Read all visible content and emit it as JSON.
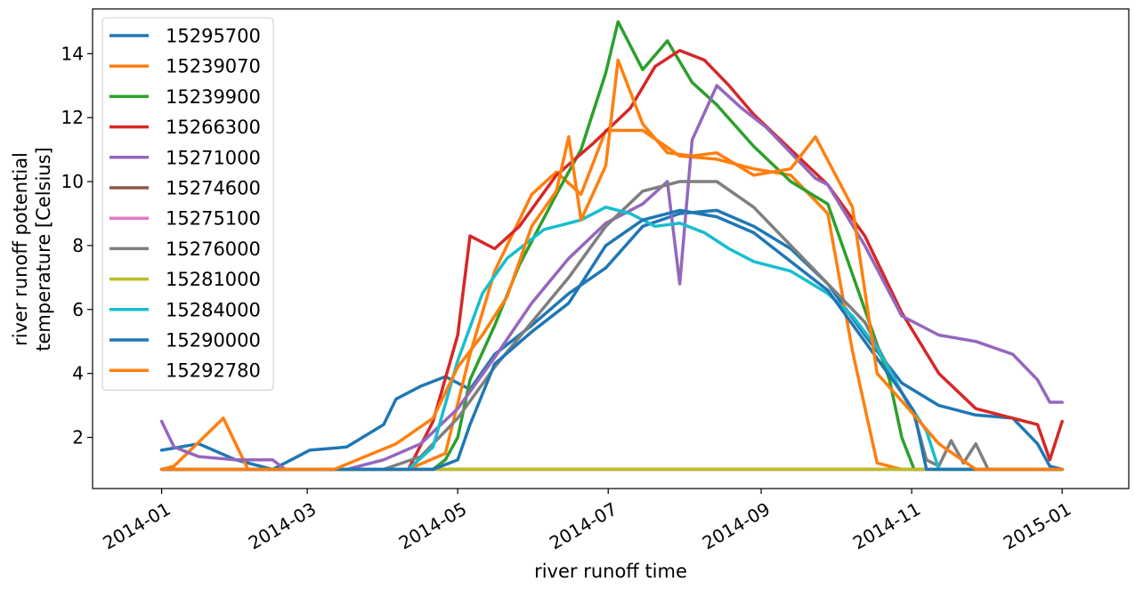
{
  "chart_data": {
    "type": "line",
    "title": "",
    "xlabel": "river runoff time",
    "ylabel_lines": [
      "river runoff potential",
      "temperature [Celsius]"
    ],
    "x_unit": "day-of-2014",
    "xlim": [
      -28,
      392
    ],
    "ylim": [
      0.4,
      15.4
    ],
    "x_ticks": [
      {
        "value": 0,
        "label": "2014-01"
      },
      {
        "value": 59,
        "label": "2014-03"
      },
      {
        "value": 120,
        "label": "2014-05"
      },
      {
        "value": 181,
        "label": "2014-07"
      },
      {
        "value": 243,
        "label": "2014-09"
      },
      {
        "value": 304,
        "label": "2014-11"
      },
      {
        "value": 365,
        "label": "2015-01"
      }
    ],
    "y_ticks": [
      2,
      4,
      6,
      8,
      10,
      12,
      14
    ],
    "legend_position": "upper-left",
    "series": [
      {
        "name": "15295700",
        "color": "#1f77b4",
        "x": [
          0,
          15,
          30,
          45,
          50,
          60,
          75,
          90,
          95,
          105,
          115,
          125,
          135,
          150,
          165,
          180,
          195,
          210,
          225,
          240,
          255,
          270,
          285,
          300,
          315,
          330,
          345,
          355,
          360,
          365
        ],
        "values": [
          1.6,
          1.8,
          1.3,
          1.0,
          1.2,
          1.6,
          1.7,
          2.4,
          3.2,
          3.6,
          3.9,
          3.5,
          4.6,
          5.5,
          6.5,
          7.3,
          8.6,
          9.0,
          9.1,
          8.6,
          7.9,
          6.8,
          5.2,
          3.7,
          3.0,
          2.7,
          2.6,
          1.8,
          1.1,
          1.0
        ]
      },
      {
        "name": "15239070",
        "color": "#ff7f0e",
        "x": [
          0,
          5,
          25,
          35,
          60,
          100,
          115,
          125,
          135,
          150,
          160,
          170,
          180,
          195,
          210,
          225,
          240,
          255,
          270,
          280,
          290,
          300,
          320,
          365
        ],
        "values": [
          1.0,
          1.1,
          2.6,
          1.0,
          1.0,
          1.0,
          1.5,
          4.6,
          7.2,
          9.6,
          10.3,
          9.6,
          11.6,
          11.6,
          10.8,
          10.7,
          10.4,
          10.2,
          9.0,
          4.7,
          1.2,
          1.0,
          1.0,
          1.0
        ]
      },
      {
        "name": "15239900",
        "color": "#2ca02c",
        "x": [
          0,
          110,
          115,
          120,
          125,
          135,
          145,
          160,
          170,
          180,
          185,
          195,
          205,
          215,
          225,
          240,
          255,
          270,
          285,
          295,
          300,
          305,
          365
        ],
        "values": [
          1.0,
          1.0,
          1.3,
          2.0,
          3.8,
          5.5,
          7.4,
          9.6,
          11.0,
          13.4,
          15.0,
          13.5,
          14.4,
          13.1,
          12.4,
          11.1,
          10.0,
          9.3,
          6.0,
          3.8,
          2.0,
          1.0,
          1.0
        ]
      },
      {
        "name": "15266300",
        "color": "#d62728",
        "x": [
          0,
          100,
          110,
          120,
          125,
          135,
          145,
          160,
          175,
          190,
          200,
          210,
          220,
          230,
          240,
          255,
          270,
          285,
          300,
          315,
          330,
          345,
          355,
          360,
          365
        ],
        "values": [
          1.0,
          1.0,
          2.5,
          5.2,
          8.3,
          7.9,
          8.6,
          10.2,
          11.2,
          12.3,
          13.6,
          14.1,
          13.8,
          13.0,
          12.1,
          11.0,
          9.9,
          8.3,
          5.9,
          4.0,
          2.9,
          2.6,
          2.4,
          1.3,
          2.5
        ]
      },
      {
        "name": "15271000",
        "color": "#9467bd",
        "x": [
          0,
          5,
          15,
          30,
          45,
          50,
          60,
          75,
          90,
          105,
          120,
          135,
          150,
          165,
          180,
          195,
          205,
          210,
          215,
          225,
          235,
          245,
          255,
          265,
          270,
          285,
          300,
          315,
          330,
          345,
          355,
          360,
          365
        ],
        "values": [
          2.5,
          1.7,
          1.4,
          1.3,
          1.3,
          1.0,
          1.0,
          1.0,
          1.3,
          1.8,
          2.9,
          4.5,
          6.2,
          7.6,
          8.7,
          9.3,
          10.0,
          6.8,
          11.3,
          13.0,
          12.3,
          11.7,
          10.9,
          10.1,
          9.9,
          8.0,
          5.8,
          5.2,
          5.0,
          4.6,
          3.8,
          3.1,
          3.1
        ]
      },
      {
        "name": "15274600",
        "color": "#8c564b",
        "x": [
          0,
          120,
          180,
          240,
          300,
          365
        ],
        "values": [
          1.0,
          1.0,
          1.0,
          1.0,
          1.0,
          1.0
        ]
      },
      {
        "name": "15275100",
        "color": "#e377c2",
        "x": [
          0,
          120,
          180,
          240,
          300,
          365
        ],
        "values": [
          1.0,
          1.0,
          1.0,
          1.0,
          1.0,
          1.0
        ]
      },
      {
        "name": "15276000",
        "color": "#7f7f7f",
        "x": [
          0,
          90,
          105,
          120,
          135,
          150,
          165,
          180,
          195,
          210,
          225,
          240,
          255,
          270,
          285,
          300,
          305,
          310,
          315,
          320,
          325,
          330,
          335,
          365
        ],
        "values": [
          1.0,
          1.0,
          1.4,
          2.6,
          4.2,
          5.6,
          7.0,
          8.6,
          9.7,
          10.0,
          10.0,
          9.2,
          8.0,
          6.8,
          5.6,
          3.4,
          2.7,
          1.3,
          1.1,
          1.9,
          1.2,
          1.8,
          1.0,
          1.0
        ]
      },
      {
        "name": "15281000",
        "color": "#bcbd22",
        "x": [
          0,
          120,
          180,
          240,
          300,
          365
        ],
        "values": [
          1.0,
          1.0,
          1.0,
          1.0,
          1.0,
          1.0
        ]
      },
      {
        "name": "15284000",
        "color": "#17becf",
        "x": [
          0,
          100,
          110,
          120,
          130,
          140,
          155,
          170,
          180,
          190,
          200,
          210,
          220,
          230,
          240,
          255,
          270,
          280,
          290,
          300,
          310,
          315,
          365
        ],
        "values": [
          1.0,
          1.0,
          1.7,
          4.4,
          6.5,
          7.6,
          8.5,
          8.8,
          9.2,
          9.0,
          8.6,
          8.7,
          8.4,
          7.9,
          7.5,
          7.2,
          6.5,
          5.8,
          4.8,
          3.4,
          2.2,
          1.0,
          1.0
        ]
      },
      {
        "name": "15290000",
        "color": "#1f77b4",
        "x": [
          0,
          110,
          120,
          125,
          135,
          150,
          165,
          180,
          195,
          210,
          225,
          240,
          255,
          270,
          285,
          300,
          305,
          310,
          365
        ],
        "values": [
          1.0,
          1.0,
          1.3,
          2.4,
          4.3,
          5.3,
          6.2,
          8.0,
          8.8,
          9.1,
          8.9,
          8.4,
          7.5,
          6.6,
          5.0,
          3.4,
          2.8,
          1.0,
          1.0
        ]
      },
      {
        "name": "15292780",
        "color": "#ff7f0e",
        "x": [
          0,
          20,
          30,
          70,
          95,
          110,
          120,
          130,
          140,
          150,
          160,
          165,
          170,
          180,
          185,
          195,
          205,
          215,
          225,
          240,
          255,
          265,
          280,
          290,
          305,
          315,
          330,
          340,
          365
        ],
        "values": [
          1.0,
          1.0,
          1.0,
          1.0,
          1.8,
          2.6,
          4.2,
          5.2,
          6.4,
          8.6,
          9.7,
          11.4,
          8.8,
          10.5,
          13.8,
          11.8,
          10.9,
          10.8,
          10.9,
          10.2,
          10.4,
          11.4,
          9.2,
          4.0,
          2.7,
          1.8,
          1.0,
          1.0,
          1.0
        ]
      }
    ]
  }
}
